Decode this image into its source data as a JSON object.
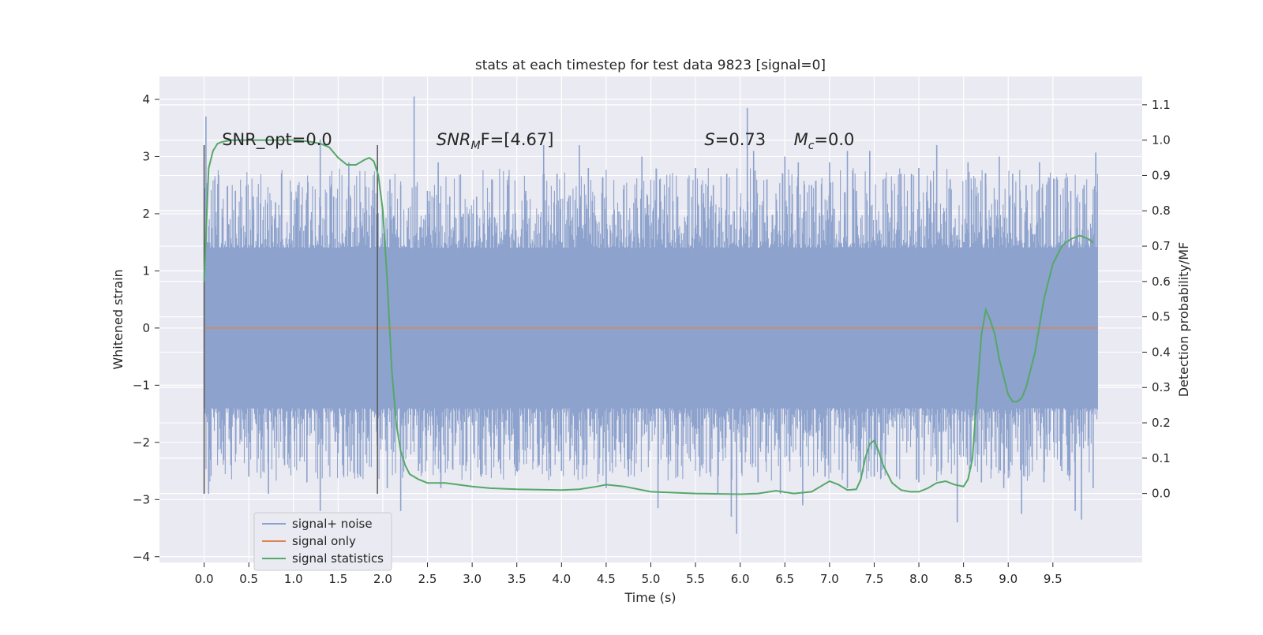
{
  "chart_data": {
    "type": "line",
    "title": "stats at each timestep for test data 9823 [signal=0]",
    "xlabel": "Time (s)",
    "ylabel": "Whitened strain",
    "y2label": "Detection probability/MF",
    "xlim": [
      -0.5,
      10.5
    ],
    "ylim": [
      -4.1,
      4.4
    ],
    "y2lim": [
      -0.195,
      1.18
    ],
    "xticks": [
      0.0,
      0.5,
      1.0,
      1.5,
      2.0,
      2.5,
      3.0,
      3.5,
      4.0,
      4.5,
      5.0,
      5.5,
      6.0,
      6.5,
      7.0,
      7.5,
      8.0,
      8.5,
      9.0,
      9.5
    ],
    "xtick_labels": [
      "0.0",
      "0.5",
      "1.0",
      "1.5",
      "2.0",
      "2.5",
      "3.0",
      "3.5",
      "4.0",
      "4.5",
      "5.0",
      "5.5",
      "6.0",
      "6.5",
      "7.0",
      "7.5",
      "8.0",
      "8.5",
      "9.0",
      "9.5"
    ],
    "yticks": [
      4,
      3,
      2,
      1,
      0,
      -1,
      -2,
      -3,
      -4
    ],
    "ytick_labels": [
      "4",
      "3",
      "2",
      "1",
      "0",
      "−1",
      "−2",
      "−3",
      "−4"
    ],
    "y2ticks": [
      1.1,
      1.0,
      0.9,
      0.8,
      0.7,
      0.6,
      0.5,
      0.4,
      0.3,
      0.2,
      0.1,
      0.0
    ],
    "y2tick_labels": [
      "1.1",
      "1.0",
      "0.9",
      "0.8",
      "0.7",
      "0.6",
      "0.5",
      "0.4",
      "0.3",
      "0.2",
      "0.1",
      "0.0"
    ],
    "grid": true,
    "legend_position": "lower-left",
    "annotations": [
      {
        "kind": "plain",
        "text": "SNR_opt=0.0",
        "x": 0.2,
        "y": 3.2
      },
      {
        "kind": "sub",
        "main": "SNR",
        "sub": "M",
        "tail": "F=[4.67]",
        "x": 2.6,
        "y": 3.2
      },
      {
        "kind": "italic",
        "main": "S",
        "tail": "=0.73",
        "x": 5.6,
        "y": 3.2
      },
      {
        "kind": "sub",
        "main": "M",
        "sub": "c",
        "tail": "=0.0",
        "x": 6.6,
        "y": 3.2
      }
    ],
    "vlines": [
      {
        "x": 0.0,
        "ymin": -2.9,
        "ymax": 3.2
      },
      {
        "x": 1.94,
        "ymin": -2.9,
        "ymax": 3.2
      }
    ],
    "series": [
      {
        "name": "signal+ noise",
        "axis": "left",
        "color": "#8da2cc",
        "x_range": [
          0.0,
          10.0
        ],
        "band": [
          -1.4,
          1.4
        ],
        "peaks_up": [
          [
            0.02,
            3.7
          ],
          [
            0.12,
            2.6
          ],
          [
            0.35,
            2.4
          ],
          [
            0.55,
            2.3
          ],
          [
            0.8,
            2.2
          ],
          [
            1.05,
            2.5
          ],
          [
            1.3,
            3.3
          ],
          [
            1.45,
            2.3
          ],
          [
            1.62,
            2.9
          ],
          [
            1.75,
            2.2
          ],
          [
            1.9,
            2.1
          ],
          [
            2.08,
            2.6
          ],
          [
            2.2,
            2.5
          ],
          [
            2.35,
            4.05
          ],
          [
            2.5,
            2.4
          ],
          [
            2.62,
            2.9
          ],
          [
            2.75,
            2.3
          ],
          [
            2.9,
            2.0
          ],
          [
            3.05,
            2.3
          ],
          [
            3.22,
            2.6
          ],
          [
            3.4,
            2.5
          ],
          [
            3.6,
            2.4
          ],
          [
            3.8,
            3.2
          ],
          [
            3.95,
            2.7
          ],
          [
            4.2,
            3.2
          ],
          [
            4.3,
            2.8
          ],
          [
            4.5,
            2.3
          ],
          [
            4.7,
            2.5
          ],
          [
            4.9,
            3.0
          ],
          [
            5.1,
            2.6
          ],
          [
            5.3,
            2.3
          ],
          [
            5.5,
            2.8
          ],
          [
            5.7,
            2.5
          ],
          [
            5.85,
            2.7
          ],
          [
            6.08,
            3.85
          ],
          [
            6.15,
            3.1
          ],
          [
            6.3,
            2.6
          ],
          [
            6.5,
            3.0
          ],
          [
            6.65,
            2.9
          ],
          [
            6.8,
            2.5
          ],
          [
            7.0,
            2.9
          ],
          [
            7.2,
            3.1
          ],
          [
            7.3,
            2.4
          ],
          [
            7.45,
            3.1
          ],
          [
            7.6,
            2.6
          ],
          [
            7.8,
            2.7
          ],
          [
            8.0,
            2.8
          ],
          [
            8.2,
            3.2
          ],
          [
            8.35,
            2.6
          ],
          [
            8.55,
            2.9
          ],
          [
            8.75,
            2.5
          ],
          [
            8.9,
            3.0
          ],
          [
            9.05,
            2.7
          ],
          [
            9.2,
            2.5
          ],
          [
            9.35,
            2.9
          ],
          [
            9.55,
            2.6
          ],
          [
            9.7,
            2.4
          ],
          [
            9.85,
            2.5
          ],
          [
            9.98,
            3.07
          ]
        ],
        "peaks_down": [
          [
            0.05,
            -2.9
          ],
          [
            0.3,
            -2.4
          ],
          [
            0.5,
            -2.6
          ],
          [
            0.72,
            -2.9
          ],
          [
            0.9,
            -2.4
          ],
          [
            1.15,
            -2.7
          ],
          [
            1.3,
            -3.2
          ],
          [
            1.55,
            -2.4
          ],
          [
            1.75,
            -2.6
          ],
          [
            2.05,
            -2.8
          ],
          [
            2.2,
            -3.2
          ],
          [
            2.4,
            -2.5
          ],
          [
            2.65,
            -2.8
          ],
          [
            2.9,
            -2.4
          ],
          [
            3.1,
            -2.6
          ],
          [
            3.3,
            -2.3
          ],
          [
            3.5,
            -2.5
          ],
          [
            3.75,
            -2.4
          ],
          [
            4.0,
            -2.5
          ],
          [
            4.25,
            -2.4
          ],
          [
            4.5,
            -2.8
          ],
          [
            4.75,
            -2.6
          ],
          [
            5.08,
            -3.15
          ],
          [
            5.3,
            -2.6
          ],
          [
            5.55,
            -2.5
          ],
          [
            5.75,
            -2.9
          ],
          [
            5.9,
            -3.3
          ],
          [
            5.96,
            -3.6
          ],
          [
            6.2,
            -2.7
          ],
          [
            6.45,
            -2.9
          ],
          [
            6.7,
            -3.1
          ],
          [
            6.95,
            -2.6
          ],
          [
            7.2,
            -2.8
          ],
          [
            7.5,
            -2.6
          ],
          [
            7.75,
            -2.6
          ],
          [
            8.0,
            -2.7
          ],
          [
            8.25,
            -2.5
          ],
          [
            8.43,
            -3.4
          ],
          [
            8.7,
            -2.7
          ],
          [
            8.95,
            -2.8
          ],
          [
            9.15,
            -3.25
          ],
          [
            9.4,
            -2.7
          ],
          [
            9.6,
            -2.5
          ],
          [
            9.75,
            -3.2
          ],
          [
            9.82,
            -3.35
          ],
          [
            9.95,
            -2.8
          ]
        ]
      },
      {
        "name": "signal only",
        "axis": "left",
        "color": "#dd8452",
        "x": [
          0.0,
          10.0
        ],
        "y": [
          0.0,
          0.0
        ]
      },
      {
        "name": "signal statistics",
        "axis": "right",
        "color": "#55a868",
        "x": [
          0.0,
          0.05,
          0.1,
          0.15,
          0.2,
          0.3,
          0.5,
          0.8,
          1.0,
          1.1,
          1.2,
          1.3,
          1.4,
          1.5,
          1.6,
          1.7,
          1.8,
          1.85,
          1.9,
          1.95,
          2.0,
          2.05,
          2.1,
          2.15,
          2.2,
          2.25,
          2.3,
          2.4,
          2.5,
          2.7,
          3.0,
          3.2,
          3.5,
          4.0,
          4.2,
          4.4,
          4.5,
          4.7,
          5.0,
          5.5,
          6.0,
          6.2,
          6.4,
          6.6,
          6.8,
          6.9,
          7.0,
          7.1,
          7.2,
          7.3,
          7.35,
          7.4,
          7.45,
          7.5,
          7.55,
          7.6,
          7.7,
          7.8,
          7.9,
          8.0,
          8.1,
          8.2,
          8.3,
          8.4,
          8.5,
          8.55,
          8.6,
          8.65,
          8.7,
          8.75,
          8.8,
          8.85,
          8.9,
          8.95,
          9.0,
          9.05,
          9.1,
          9.15,
          9.2,
          9.3,
          9.4,
          9.5,
          9.6,
          9.7,
          9.8,
          9.9,
          9.95
        ],
        "y": [
          0.6,
          0.92,
          0.97,
          0.99,
          0.995,
          1.0,
          1.0,
          1.0,
          1.0,
          0.998,
          0.995,
          0.99,
          0.98,
          0.95,
          0.93,
          0.93,
          0.945,
          0.95,
          0.94,
          0.9,
          0.8,
          0.6,
          0.35,
          0.2,
          0.12,
          0.08,
          0.055,
          0.04,
          0.03,
          0.03,
          0.02,
          0.015,
          0.012,
          0.01,
          0.012,
          0.02,
          0.025,
          0.02,
          0.005,
          0.0,
          -0.002,
          0.0,
          0.008,
          0.0,
          0.005,
          0.02,
          0.035,
          0.025,
          0.01,
          0.012,
          0.04,
          0.1,
          0.14,
          0.15,
          0.12,
          0.08,
          0.03,
          0.01,
          0.005,
          0.005,
          0.015,
          0.03,
          0.035,
          0.025,
          0.02,
          0.04,
          0.1,
          0.28,
          0.45,
          0.52,
          0.49,
          0.45,
          0.38,
          0.33,
          0.28,
          0.26,
          0.26,
          0.27,
          0.3,
          0.4,
          0.55,
          0.65,
          0.7,
          0.72,
          0.73,
          0.72,
          0.71
        ]
      }
    ]
  }
}
